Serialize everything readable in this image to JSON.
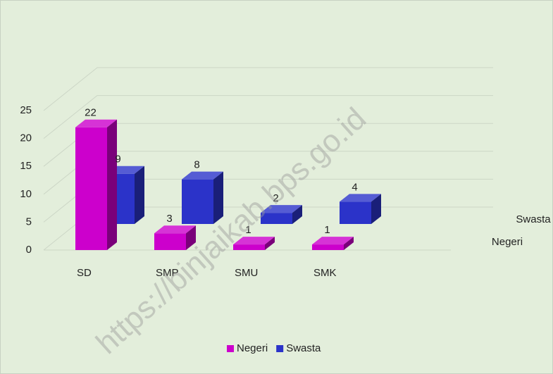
{
  "chart_data": {
    "type": "bar3d",
    "categories": [
      "SD",
      "SMP",
      "SMU",
      "SMK"
    ],
    "series": [
      {
        "name": "Negeri",
        "color": "#cc00cc",
        "values": [
          22,
          3,
          1,
          1
        ]
      },
      {
        "name": "Swasta",
        "color": "#2b33c9",
        "values": [
          9,
          8,
          2,
          4
        ]
      }
    ],
    "ylim": [
      0,
      25
    ],
    "yticks": [
      0,
      5,
      10,
      15,
      20,
      25
    ],
    "grid": true,
    "legend": "bottom",
    "watermark": "https://binjaikab.bps.go.id"
  }
}
